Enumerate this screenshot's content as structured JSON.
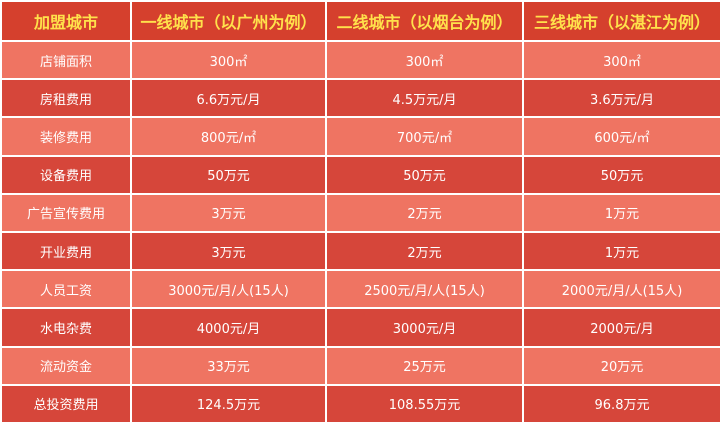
{
  "table": {
    "header": [
      "加盟城市",
      "一线城市（以广州为例）",
      "二线城市（以烟台为例）",
      "三线城市（以湛江为例）"
    ],
    "rows": [
      [
        "店铺面积",
        "300㎡",
        "300㎡",
        "300㎡"
      ],
      [
        "房租费用",
        "6.6万元/月",
        "4.5万元/月",
        "3.6万元/月"
      ],
      [
        "装修费用",
        "800元/㎡",
        "700元/㎡",
        "600元/㎡"
      ],
      [
        "设备费用",
        "50万元",
        "50万元",
        "50万元"
      ],
      [
        "广告宣传费用",
        "3万元",
        "2万元",
        "1万元"
      ],
      [
        "开业费用",
        "3万元",
        "2万元",
        "1万元"
      ],
      [
        "人员工资",
        "3000元/月/人(15人)",
        "2500元/月/人(15人)",
        "2000元/月/人(15人)"
      ],
      [
        "水电杂费",
        "4000元/月",
        "3000元/月",
        "2000元/月"
      ],
      [
        "流动资金",
        "33万元",
        "25万元",
        "20万元"
      ],
      [
        "总投资费用",
        "124.5万元",
        "108.55万元",
        "96.8万元"
      ]
    ]
  }
}
